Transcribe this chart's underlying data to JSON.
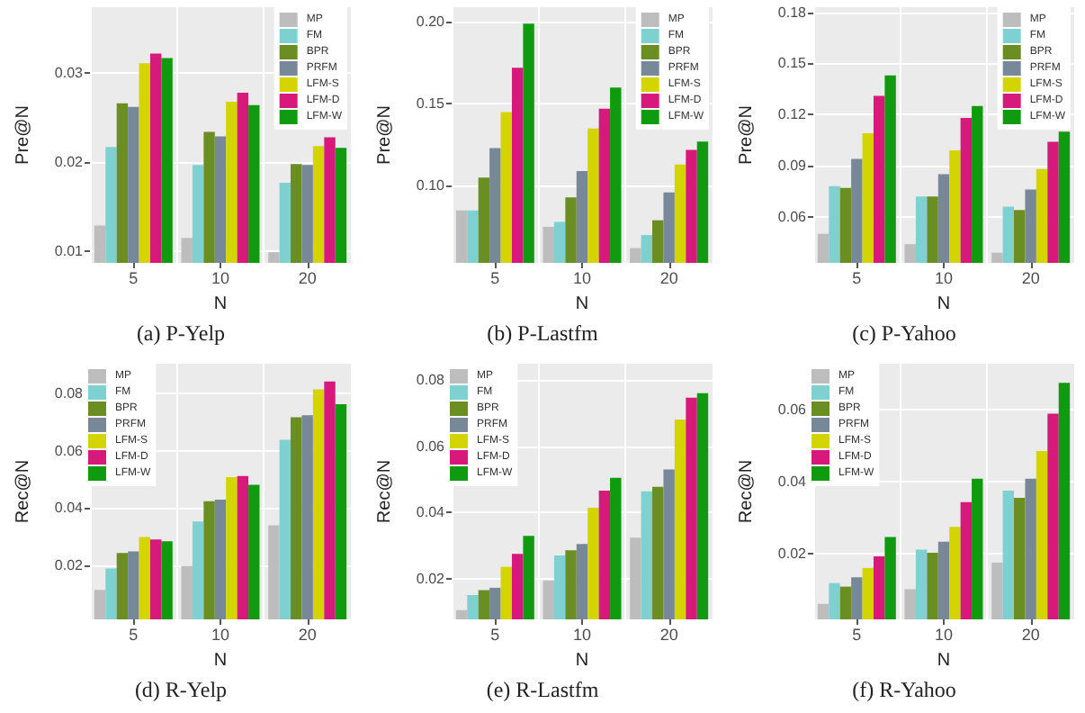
{
  "chart_data": [
    {
      "type": "bar",
      "title": "(a) P-Yelp",
      "xlabel": "N",
      "ylabel": "Pre@N",
      "categories": [
        "5",
        "10",
        "20"
      ],
      "ylim": [
        0.0087,
        0.0374
      ],
      "yticks": [
        0.01,
        0.02,
        0.03
      ],
      "grid": true,
      "legend": "top right",
      "series": [
        {
          "name": "MP",
          "color": "#bdbdbd",
          "values": [
            0.0129,
            0.0115,
            0.0099
          ]
        },
        {
          "name": "FM",
          "color": "#7fd1d1",
          "values": [
            0.0217,
            0.0197,
            0.0177
          ]
        },
        {
          "name": "BPR",
          "color": "#6b8e23",
          "values": [
            0.0266,
            0.0234,
            0.0198
          ]
        },
        {
          "name": "PRFM",
          "color": "#778899",
          "values": [
            0.0262,
            0.0229,
            0.0197
          ]
        },
        {
          "name": "LFM-S",
          "color": "#d4d400",
          "values": [
            0.0311,
            0.0268,
            0.0218
          ]
        },
        {
          "name": "LFM-D",
          "color": "#d6197a",
          "values": [
            0.0322,
            0.0278,
            0.0228
          ]
        },
        {
          "name": "LFM-W",
          "color": "#109a10",
          "values": [
            0.0317,
            0.0264,
            0.0216
          ]
        }
      ]
    },
    {
      "type": "bar",
      "title": "(b) P-Lastfm",
      "xlabel": "N",
      "ylabel": "Pre@N",
      "categories": [
        "5",
        "10",
        "20"
      ],
      "ylim": [
        0.053,
        0.209
      ],
      "yticks": [
        {
          "value": 0.1,
          "label": "0.10"
        },
        0.15,
        {
          "value": 0.2,
          "label": "0.20"
        }
      ],
      "grid": true,
      "legend": "top right",
      "series": [
        {
          "name": "MP",
          "color": "#bdbdbd",
          "values": [
            0.085,
            0.075,
            0.062
          ]
        },
        {
          "name": "FM",
          "color": "#7fd1d1",
          "values": [
            0.085,
            0.078,
            0.07
          ]
        },
        {
          "name": "BPR",
          "color": "#6b8e23",
          "values": [
            0.105,
            0.093,
            0.079
          ]
        },
        {
          "name": "PRFM",
          "color": "#778899",
          "values": [
            0.123,
            0.109,
            0.096
          ]
        },
        {
          "name": "LFM-S",
          "color": "#d4d400",
          "values": [
            0.145,
            0.135,
            0.113
          ]
        },
        {
          "name": "LFM-D",
          "color": "#d6197a",
          "values": [
            0.172,
            0.147,
            0.122
          ]
        },
        {
          "name": "LFM-W",
          "color": "#109a10",
          "values": [
            0.199,
            0.16,
            0.127
          ]
        }
      ]
    },
    {
      "type": "bar",
      "title": "(c) P-Yahoo",
      "xlabel": "N",
      "ylabel": "Pre@N",
      "categories": [
        "5",
        "10",
        "20"
      ],
      "ylim": [
        0.033,
        0.183
      ],
      "yticks": [
        0.06,
        0.09,
        0.12,
        0.15,
        0.18
      ],
      "grid": true,
      "legend": "top right",
      "series": [
        {
          "name": "MP",
          "color": "#bdbdbd",
          "values": [
            0.05,
            0.044,
            0.039
          ]
        },
        {
          "name": "FM",
          "color": "#7fd1d1",
          "values": [
            0.078,
            0.072,
            0.066
          ]
        },
        {
          "name": "BPR",
          "color": "#6b8e23",
          "values": [
            0.077,
            0.072,
            0.064
          ]
        },
        {
          "name": "PRFM",
          "color": "#778899",
          "values": [
            0.094,
            0.085,
            0.076
          ]
        },
        {
          "name": "LFM-S",
          "color": "#d4d400",
          "values": [
            0.109,
            0.099,
            0.088
          ]
        },
        {
          "name": "LFM-D",
          "color": "#d6197a",
          "values": [
            0.131,
            0.118,
            0.104
          ]
        },
        {
          "name": "LFM-W",
          "color": "#109a10",
          "values": [
            0.143,
            0.125,
            0.11
          ]
        }
      ]
    },
    {
      "type": "bar",
      "title": "(d) R-Yelp",
      "xlabel": "N",
      "ylabel": "Rec@N",
      "categories": [
        "5",
        "10",
        "20"
      ],
      "ylim": [
        0.0011,
        0.0905
      ],
      "yticks": [
        0.02,
        0.04,
        0.06,
        0.08
      ],
      "grid": true,
      "legend": "top left",
      "series": [
        {
          "name": "MP",
          "color": "#bdbdbd",
          "values": [
            0.0114,
            0.0198,
            0.034
          ]
        },
        {
          "name": "FM",
          "color": "#7fd1d1",
          "values": [
            0.0189,
            0.0353,
            0.0639
          ]
        },
        {
          "name": "BPR",
          "color": "#6b8e23",
          "values": [
            0.0243,
            0.0424,
            0.0718
          ]
        },
        {
          "name": "PRFM",
          "color": "#778899",
          "values": [
            0.0249,
            0.043,
            0.0725
          ]
        },
        {
          "name": "LFM-S",
          "color": "#d4d400",
          "values": [
            0.0299,
            0.0508,
            0.0815
          ]
        },
        {
          "name": "LFM-D",
          "color": "#d6197a",
          "values": [
            0.029,
            0.0512,
            0.0843
          ]
        },
        {
          "name": "LFM-W",
          "color": "#109a10",
          "values": [
            0.0284,
            0.0482,
            0.0763
          ]
        }
      ]
    },
    {
      "type": "bar",
      "title": "(e) R-Lastfm",
      "xlabel": "N",
      "ylabel": "Rec@N",
      "categories": [
        "5",
        "10",
        "20"
      ],
      "ylim": [
        0.0079,
        0.0848
      ],
      "yticks": [
        0.02,
        0.04,
        0.06,
        0.08
      ],
      "grid": true,
      "legend": "top left",
      "series": [
        {
          "name": "MP",
          "color": "#bdbdbd",
          "values": [
            0.0107,
            0.0196,
            0.0325
          ]
        },
        {
          "name": "FM",
          "color": "#7fd1d1",
          "values": [
            0.0152,
            0.0271,
            0.0464
          ]
        },
        {
          "name": "BPR",
          "color": "#6b8e23",
          "values": [
            0.0167,
            0.0287,
            0.0478
          ]
        },
        {
          "name": "PRFM",
          "color": "#778899",
          "values": [
            0.0174,
            0.0306,
            0.053
          ]
        },
        {
          "name": "LFM-S",
          "color": "#d4d400",
          "values": [
            0.0237,
            0.0415,
            0.068
          ]
        },
        {
          "name": "LFM-D",
          "color": "#d6197a",
          "values": [
            0.0276,
            0.0466,
            0.0746
          ]
        },
        {
          "name": "LFM-W",
          "color": "#109a10",
          "values": [
            0.033,
            0.0505,
            0.0759
          ]
        }
      ]
    },
    {
      "type": "bar",
      "title": "(f) R-Yahoo",
      "xlabel": "N",
      "ylabel": "Rec@N",
      "categories": [
        "5",
        "10",
        "20"
      ],
      "ylim": [
        0.0016,
        0.0727
      ],
      "yticks": [
        0.02,
        0.04,
        0.06
      ],
      "grid": true,
      "legend": "top left",
      "series": [
        {
          "name": "MP",
          "color": "#bdbdbd",
          "values": [
            0.0059,
            0.01,
            0.0174
          ]
        },
        {
          "name": "FM",
          "color": "#7fd1d1",
          "values": [
            0.0117,
            0.021,
            0.0374
          ]
        },
        {
          "name": "BPR",
          "color": "#6b8e23",
          "values": [
            0.0107,
            0.0201,
            0.0354
          ]
        },
        {
          "name": "PRFM",
          "color": "#778899",
          "values": [
            0.0133,
            0.0232,
            0.0407
          ]
        },
        {
          "name": "LFM-S",
          "color": "#d4d400",
          "values": [
            0.0159,
            0.0273,
            0.0484
          ]
        },
        {
          "name": "LFM-D",
          "color": "#d6197a",
          "values": [
            0.0191,
            0.0342,
            0.0588
          ]
        },
        {
          "name": "LFM-W",
          "color": "#109a10",
          "values": [
            0.0245,
            0.0407,
            0.0674
          ]
        }
      ]
    }
  ]
}
